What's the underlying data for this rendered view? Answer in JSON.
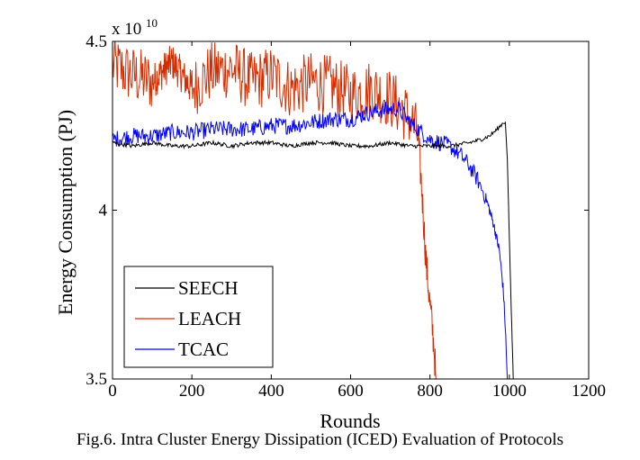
{
  "caption": "Fig.6. Intra Cluster Energy Dissipation (ICED) Evaluation of Protocols",
  "chart_data": {
    "type": "line",
    "xlabel": "Rounds",
    "ylabel": "Energy Consumption (PJ)",
    "y_multiplier_base": "x 10",
    "y_multiplier_exp": "10",
    "xlim": [
      0,
      1200
    ],
    "ylim": [
      3.5,
      4.5
    ],
    "xticks": [
      0,
      200,
      400,
      600,
      800,
      1000,
      1200
    ],
    "xtick_labels": [
      "0",
      "200",
      "400",
      "600",
      "800",
      "1000",
      "1200"
    ],
    "yticks": [
      3.5,
      4.0,
      4.5
    ],
    "ytick_labels": [
      "3.5",
      "4",
      "4.5"
    ],
    "grid": false,
    "legend_position": "bottom-left",
    "series": [
      {
        "name": "SEECH",
        "color": "#000000",
        "points": [
          [
            0,
            4.2
          ],
          [
            50,
            4.19
          ],
          [
            100,
            4.2
          ],
          [
            150,
            4.19
          ],
          [
            200,
            4.19
          ],
          [
            250,
            4.2
          ],
          [
            300,
            4.19
          ],
          [
            350,
            4.2
          ],
          [
            400,
            4.2
          ],
          [
            450,
            4.19
          ],
          [
            500,
            4.2
          ],
          [
            550,
            4.2
          ],
          [
            600,
            4.19
          ],
          [
            650,
            4.19
          ],
          [
            700,
            4.2
          ],
          [
            750,
            4.19
          ],
          [
            800,
            4.19
          ],
          [
            850,
            4.19
          ],
          [
            900,
            4.2
          ],
          [
            930,
            4.21
          ],
          [
            950,
            4.22
          ],
          [
            970,
            4.24
          ],
          [
            985,
            4.26
          ],
          [
            990,
            4.26
          ],
          [
            995,
            4.15
          ],
          [
            1000,
            3.92
          ],
          [
            1005,
            3.7
          ],
          [
            1010,
            3.5
          ]
        ]
      },
      {
        "name": "LEACH",
        "color": "#d62c00",
        "points": [
          [
            0,
            4.43
          ],
          [
            50,
            4.4
          ],
          [
            100,
            4.38
          ],
          [
            150,
            4.44
          ],
          [
            200,
            4.36
          ],
          [
            250,
            4.41
          ],
          [
            300,
            4.42
          ],
          [
            350,
            4.38
          ],
          [
            400,
            4.4
          ],
          [
            450,
            4.36
          ],
          [
            500,
            4.38
          ],
          [
            550,
            4.37
          ],
          [
            600,
            4.34
          ],
          [
            650,
            4.36
          ],
          [
            700,
            4.33
          ],
          [
            730,
            4.3
          ],
          [
            750,
            4.27
          ],
          [
            770,
            4.22
          ],
          [
            780,
            4.05
          ],
          [
            790,
            3.85
          ],
          [
            800,
            3.72
          ],
          [
            810,
            3.6
          ],
          [
            815,
            3.5
          ]
        ]
      },
      {
        "name": "TCAC",
        "color": "#0000ff",
        "points": [
          [
            0,
            4.21
          ],
          [
            50,
            4.22
          ],
          [
            100,
            4.22
          ],
          [
            150,
            4.23
          ],
          [
            200,
            4.23
          ],
          [
            250,
            4.24
          ],
          [
            300,
            4.24
          ],
          [
            350,
            4.24
          ],
          [
            400,
            4.25
          ],
          [
            450,
            4.25
          ],
          [
            500,
            4.26
          ],
          [
            550,
            4.27
          ],
          [
            600,
            4.27
          ],
          [
            650,
            4.29
          ],
          [
            700,
            4.3
          ],
          [
            720,
            4.3
          ],
          [
            750,
            4.26
          ],
          [
            800,
            4.21
          ],
          [
            850,
            4.19
          ],
          [
            880,
            4.16
          ],
          [
            900,
            4.13
          ],
          [
            920,
            4.09
          ],
          [
            940,
            4.04
          ],
          [
            960,
            3.96
          ],
          [
            975,
            3.88
          ],
          [
            985,
            3.76
          ],
          [
            990,
            3.65
          ],
          [
            995,
            3.5
          ]
        ]
      }
    ]
  }
}
